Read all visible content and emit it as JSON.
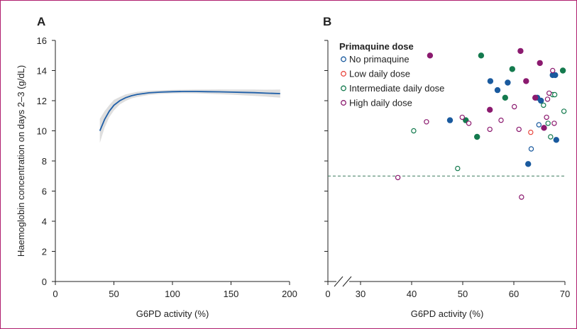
{
  "chart_data": [
    {
      "panel_label": "A",
      "type": "line",
      "xlabel": "G6PD activity (%)",
      "ylabel": "Haemoglobin concentration on days 2–3 (g/dL)",
      "xlim": [
        0,
        200
      ],
      "ylim": [
        0,
        16
      ],
      "x_ticks": [
        "0",
        "50",
        "100",
        "150",
        "200"
      ],
      "y_ticks": [
        "0",
        "2",
        "4",
        "6",
        "8",
        "10",
        "12",
        "14",
        "16"
      ],
      "grid": false,
      "series": [
        {
          "color": "#1f5fa8",
          "x": [
            38,
            42,
            46,
            50,
            55,
            60,
            65,
            70,
            80,
            90,
            100,
            110,
            120,
            130,
            140,
            150,
            160,
            170,
            180,
            192
          ],
          "y": [
            10.0,
            10.75,
            11.3,
            11.7,
            12.0,
            12.2,
            12.33,
            12.42,
            12.52,
            12.57,
            12.6,
            12.61,
            12.61,
            12.6,
            12.59,
            12.57,
            12.55,
            12.53,
            12.5,
            12.47
          ],
          "ci_lower": [
            9.2,
            10.2,
            10.9,
            11.35,
            11.75,
            11.98,
            12.15,
            12.25,
            12.38,
            12.45,
            12.48,
            12.49,
            12.48,
            12.46,
            12.43,
            12.4,
            12.36,
            12.32,
            12.27,
            12.2
          ],
          "ci_upper": [
            10.8,
            11.3,
            11.7,
            12.05,
            12.25,
            12.42,
            12.51,
            12.59,
            12.66,
            12.69,
            12.72,
            12.73,
            12.74,
            12.74,
            12.75,
            12.74,
            12.74,
            12.74,
            12.73,
            12.74
          ]
        }
      ]
    },
    {
      "panel_label": "B",
      "type": "scatter",
      "xlabel": "G6PD activity (%)",
      "xlim": [
        0,
        70
      ],
      "ylim": [
        0,
        16
      ],
      "x_ticks": [
        "0",
        "30",
        "40",
        "50",
        "60",
        "70"
      ],
      "y_ticks": [
        "0",
        "2",
        "4",
        "6",
        "8",
        "10",
        "12",
        "14",
        "16"
      ],
      "axis_break": "between 0 and 30",
      "reference_line": {
        "y": 7,
        "style": "dashed",
        "color": "#3a7a5e"
      },
      "legend_title": "Primaquine dose",
      "legend_position": "top-left",
      "grid": false,
      "series": [
        {
          "name": "No primaquine",
          "color": "#1a5a9e",
          "points": [
            {
              "x": 47.5,
              "y": 10.7,
              "filled": true
            },
            {
              "x": 55.4,
              "y": 13.3,
              "filled": true
            },
            {
              "x": 56.8,
              "y": 12.7,
              "filled": true
            },
            {
              "x": 58.8,
              "y": 13.2,
              "filled": true
            },
            {
              "x": 62.8,
              "y": 7.8,
              "filled": true
            },
            {
              "x": 67.6,
              "y": 13.7,
              "filled": true
            },
            {
              "x": 68.1,
              "y": 13.7,
              "filled": true
            },
            {
              "x": 68.3,
              "y": 9.4,
              "filled": true
            },
            {
              "x": 64.6,
              "y": 12.2,
              "filled": true
            },
            {
              "x": 65.3,
              "y": 12.0,
              "filled": true
            },
            {
              "x": 63.4,
              "y": 8.8,
              "filled": false
            },
            {
              "x": 64.9,
              "y": 10.4,
              "filled": false
            }
          ]
        },
        {
          "name": "Low daily dose",
          "color": "#e8473f",
          "points": [
            {
              "x": 63.3,
              "y": 9.9,
              "filled": false
            }
          ]
        },
        {
          "name": "Intermediate daily dose",
          "color": "#147a4e",
          "points": [
            {
              "x": 40.4,
              "y": 10.0,
              "filled": false
            },
            {
              "x": 49.0,
              "y": 7.5,
              "filled": false
            },
            {
              "x": 50.6,
              "y": 10.7,
              "filled": true
            },
            {
              "x": 52.8,
              "y": 9.6,
              "filled": true
            },
            {
              "x": 53.6,
              "y": 15.0,
              "filled": true
            },
            {
              "x": 58.3,
              "y": 12.2,
              "filled": true
            },
            {
              "x": 59.7,
              "y": 14.1,
              "filled": true
            },
            {
              "x": 65.8,
              "y": 11.7,
              "filled": false
            },
            {
              "x": 66.7,
              "y": 10.5,
              "filled": false
            },
            {
              "x": 67.2,
              "y": 9.6,
              "filled": false
            },
            {
              "x": 67.6,
              "y": 12.4,
              "filled": false
            },
            {
              "x": 68.0,
              "y": 12.4,
              "filled": false
            },
            {
              "x": 69.6,
              "y": 14.0,
              "filled": true
            },
            {
              "x": 69.8,
              "y": 11.3,
              "filled": false
            }
          ]
        },
        {
          "name": "High daily dose",
          "color": "#8b1a6f",
          "points": [
            {
              "x": 37.3,
              "y": 6.9,
              "filled": false
            },
            {
              "x": 42.9,
              "y": 10.6,
              "filled": false
            },
            {
              "x": 43.6,
              "y": 15.0,
              "filled": true
            },
            {
              "x": 49.9,
              "y": 10.9,
              "filled": false
            },
            {
              "x": 51.2,
              "y": 10.5,
              "filled": false
            },
            {
              "x": 55.3,
              "y": 11.4,
              "filled": true
            },
            {
              "x": 55.3,
              "y": 10.1,
              "filled": false
            },
            {
              "x": 57.5,
              "y": 10.7,
              "filled": false
            },
            {
              "x": 60.1,
              "y": 11.6,
              "filled": false
            },
            {
              "x": 61.0,
              "y": 10.1,
              "filled": false
            },
            {
              "x": 61.3,
              "y": 15.3,
              "filled": true
            },
            {
              "x": 61.5,
              "y": 5.6,
              "filled": false
            },
            {
              "x": 62.4,
              "y": 13.3,
              "filled": true
            },
            {
              "x": 64.2,
              "y": 12.2,
              "filled": true
            },
            {
              "x": 65.1,
              "y": 14.5,
              "filled": true
            },
            {
              "x": 65.9,
              "y": 10.2,
              "filled": true
            },
            {
              "x": 66.4,
              "y": 10.9,
              "filled": false
            },
            {
              "x": 66.6,
              "y": 12.1,
              "filled": false
            },
            {
              "x": 66.9,
              "y": 12.5,
              "filled": false
            },
            {
              "x": 67.6,
              "y": 14.0,
              "filled": false
            },
            {
              "x": 67.9,
              "y": 10.5,
              "filled": false
            }
          ]
        }
      ]
    }
  ]
}
